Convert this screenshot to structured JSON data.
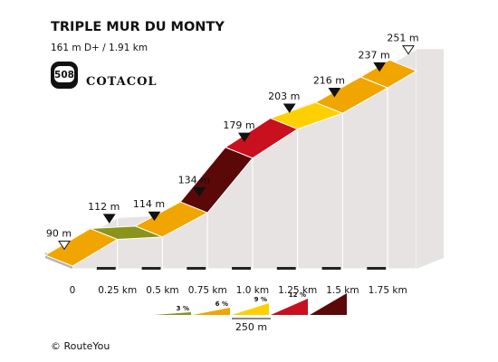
{
  "header": {
    "title": "TRIPLE MUR DU MONTY",
    "subtitle": "161 m D+ / 1.91 km",
    "badge_number": "508",
    "brand": "COTACOL"
  },
  "footer": {
    "credit": "© RouteYou"
  },
  "colors": {
    "0-3": "#8a941a",
    "3-6": "#f0a500",
    "6-9": "#ffd000",
    "9-12": "#c8101e",
    "12+": "#5a0808",
    "side_fill": "#e6e3e2",
    "base_fill": "#b5b2b0",
    "top_fill": "#c9c5c3"
  },
  "chart_data": {
    "type": "area",
    "title": "TRIPLE MUR DU MONTY",
    "xlabel": "",
    "ylabel": "",
    "x_unit": "km",
    "y_unit": "m",
    "x_ticks": [
      {
        "value": 0,
        "label": "0"
      },
      {
        "value": 0.25,
        "label": "0.25 km"
      },
      {
        "value": 0.5,
        "label": "0.5 km"
      },
      {
        "value": 0.75,
        "label": "0.75 km"
      },
      {
        "value": 1.0,
        "label": "1.0 km"
      },
      {
        "value": 1.25,
        "label": "1.25 km"
      },
      {
        "value": 1.5,
        "label": "1.5 km"
      },
      {
        "value": 1.75,
        "label": "1.75 km"
      }
    ],
    "xlim": [
      0,
      1.91
    ],
    "ylim": [
      70,
      260
    ],
    "profile": [
      {
        "km": 0.0,
        "elevation": 90
      },
      {
        "km": 0.25,
        "elevation": 112
      },
      {
        "km": 0.5,
        "elevation": 114
      },
      {
        "km": 0.75,
        "elevation": 134
      },
      {
        "km": 1.0,
        "elevation": 179
      },
      {
        "km": 1.25,
        "elevation": 203
      },
      {
        "km": 1.5,
        "elevation": 216
      },
      {
        "km": 1.75,
        "elevation": 237
      },
      {
        "km": 1.91,
        "elevation": 251
      }
    ],
    "segment_classes": [
      "3-6",
      "0-3",
      "3-6",
      "12+",
      "9-12",
      "6-9",
      "3-6",
      "3-6"
    ],
    "elevation_labels": [
      {
        "km": 0.0,
        "label": "90 m",
        "marker": "open"
      },
      {
        "km": 0.25,
        "label": "112 m",
        "marker": "filled"
      },
      {
        "km": 0.5,
        "label": "114 m",
        "marker": "filled"
      },
      {
        "km": 0.75,
        "label": "134 m",
        "marker": "filled"
      },
      {
        "km": 1.0,
        "label": "179 m",
        "marker": "filled"
      },
      {
        "km": 1.25,
        "label": "203 m",
        "marker": "filled"
      },
      {
        "km": 1.5,
        "label": "216 m",
        "marker": "filled"
      },
      {
        "km": 1.75,
        "label": "237 m",
        "marker": "filled"
      },
      {
        "km": 1.91,
        "label": "251 m",
        "marker": "open"
      }
    ],
    "legend": {
      "gradient_labels": [
        {
          "label": "3 %",
          "class": "0-3"
        },
        {
          "label": "6 %",
          "class": "3-6"
        },
        {
          "label": "9 %",
          "class": "6-9"
        },
        {
          "label": "12 %",
          "class": "9-12"
        },
        {
          "label": "",
          "class": "12+"
        }
      ],
      "scale_label": "250 m"
    }
  }
}
